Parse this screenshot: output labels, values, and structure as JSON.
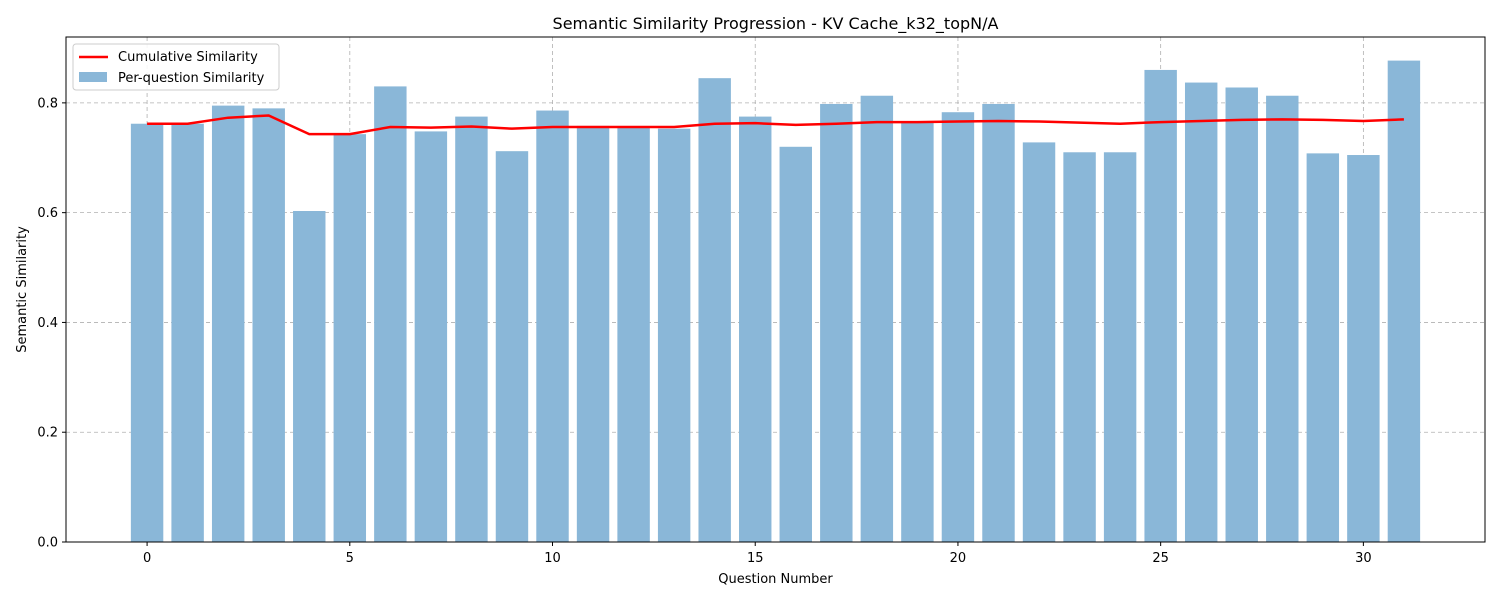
{
  "chart_data": {
    "type": "bar",
    "title": "Semantic Similarity Progression - KV Cache_k32_topN/A",
    "xlabel": "Question Number",
    "ylabel": "Semantic Similarity",
    "xlim": [
      -2,
      33
    ],
    "ylim": [
      0,
      0.92
    ],
    "xticks": [
      0,
      5,
      10,
      15,
      20,
      25,
      30
    ],
    "yticks": [
      0.0,
      0.2,
      0.4,
      0.6,
      0.8
    ],
    "grid": true,
    "legend_position": "upper-left",
    "x": [
      0,
      1,
      2,
      3,
      4,
      5,
      6,
      7,
      8,
      9,
      10,
      11,
      12,
      13,
      14,
      15,
      16,
      17,
      18,
      19,
      20,
      21,
      22,
      23,
      24,
      25,
      26,
      27,
      28,
      29,
      30,
      31
    ],
    "series": [
      {
        "name": "Cumulative Similarity",
        "kind": "line",
        "color": "#ff0000",
        "values": [
          0.762,
          0.762,
          0.773,
          0.777,
          0.743,
          0.743,
          0.756,
          0.755,
          0.757,
          0.753,
          0.756,
          0.756,
          0.756,
          0.756,
          0.762,
          0.763,
          0.76,
          0.762,
          0.765,
          0.765,
          0.766,
          0.767,
          0.766,
          0.764,
          0.762,
          0.765,
          0.767,
          0.769,
          0.77,
          0.769,
          0.767,
          0.77
        ]
      },
      {
        "name": "Per-question Similarity",
        "kind": "bar",
        "color": "#8ab7d8",
        "values": [
          0.762,
          0.762,
          0.795,
          0.79,
          0.603,
          0.743,
          0.83,
          0.748,
          0.775,
          0.712,
          0.786,
          0.758,
          0.755,
          0.753,
          0.845,
          0.775,
          0.72,
          0.798,
          0.813,
          0.765,
          0.783,
          0.798,
          0.728,
          0.71,
          0.71,
          0.86,
          0.837,
          0.828,
          0.813,
          0.708,
          0.705,
          0.877
        ]
      }
    ]
  }
}
